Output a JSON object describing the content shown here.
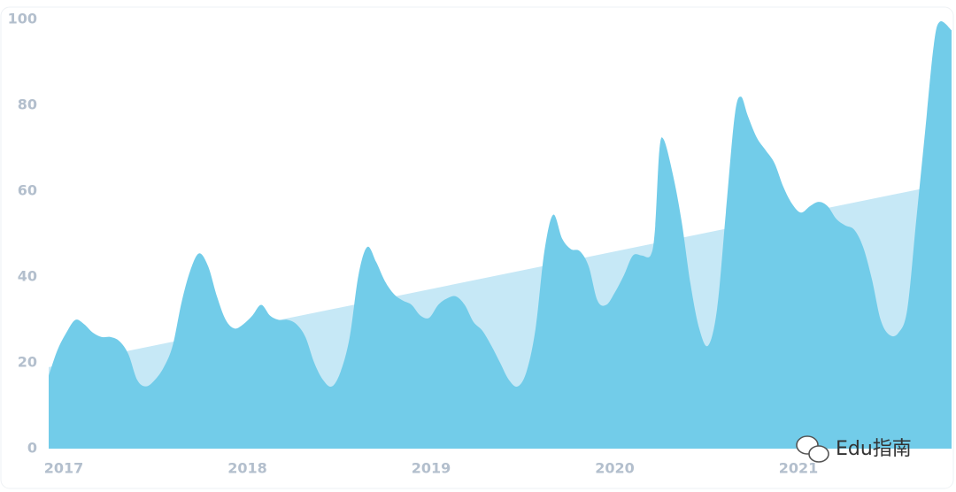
{
  "chart_data": {
    "type": "area",
    "x": [
      2016.918,
      2016.966,
      2017.014,
      2017.063,
      2017.111,
      2017.159,
      2017.207,
      2017.255,
      2017.304,
      2017.352,
      2017.4,
      2017.448,
      2017.496,
      2017.545,
      2017.593,
      2017.641,
      2017.689,
      2017.737,
      2017.786,
      2017.834,
      2017.882,
      2017.93,
      2017.978,
      2018.027,
      2018.075,
      2018.123,
      2018.171,
      2018.219,
      2018.267,
      2018.316,
      2018.364,
      2018.412,
      2018.46,
      2018.508,
      2018.557,
      2018.605,
      2018.653,
      2018.701,
      2018.749,
      2018.798,
      2018.846,
      2018.894,
      2018.942,
      2018.99,
      2019.039,
      2019.087,
      2019.135,
      2019.183,
      2019.231,
      2019.279,
      2019.328,
      2019.376,
      2019.424,
      2019.472,
      2019.52,
      2019.569,
      2019.617,
      2019.665,
      2019.713,
      2019.761,
      2019.81,
      2019.858,
      2019.906,
      2019.954,
      2020.002,
      2020.051,
      2020.099,
      2020.147,
      2020.195,
      2020.219,
      2020.243,
      2020.267,
      2020.316,
      2020.364,
      2020.412,
      2020.46,
      2020.508,
      2020.557,
      2020.605,
      2020.653,
      2020.687,
      2020.725,
      2020.773,
      2020.822,
      2020.87,
      2020.918,
      2020.966,
      2021.014,
      2021.063,
      2021.111,
      2021.159,
      2021.207,
      2021.255,
      2021.304,
      2021.352,
      2021.4,
      2021.448,
      2021.496,
      2021.545,
      2021.593,
      2021.641,
      2021.689,
      2021.737,
      2021.771,
      2021.834
    ],
    "series": [
      {
        "color": "#c6e8f6",
        "x": [
          2016.918,
          2021.665
        ],
        "values": [
          19,
          60.5
        ]
      },
      {
        "color": "#72cce9",
        "values": [
          17,
          23,
          27,
          30,
          29,
          27,
          26,
          26,
          25,
          22,
          16,
          14.5,
          16,
          19,
          24,
          34,
          41.5,
          45.5,
          42.5,
          35.5,
          30,
          28,
          29,
          31,
          33.5,
          31,
          30,
          30,
          29,
          26,
          20,
          16,
          14.5,
          18,
          26,
          40.5,
          47,
          43.5,
          39,
          36,
          34.5,
          33.5,
          31,
          30.5,
          33.5,
          35,
          35.5,
          33.5,
          29.5,
          27.5,
          24,
          20,
          16,
          14.5,
          18,
          28,
          46,
          54.5,
          49,
          46.5,
          46,
          42.5,
          34.5,
          33.5,
          36.5,
          40.5,
          45,
          45,
          45,
          51,
          69.5,
          72,
          64,
          53,
          38.5,
          28,
          24,
          32.5,
          55,
          77.5,
          82,
          77.5,
          72.5,
          69.5,
          66.5,
          61,
          57,
          55,
          56.5,
          57.5,
          56.5,
          53.5,
          52,
          51,
          47,
          39.5,
          30,
          26.5,
          27,
          32.5,
          53,
          73.5,
          94,
          99.5,
          97.5
        ]
      }
    ],
    "xlim": [
      2016.918,
      2021.834
    ],
    "xticks": [
      2017,
      2018,
      2019,
      2020,
      2021
    ],
    "ylim": [
      0,
      100
    ],
    "yticks": [
      0,
      20,
      40,
      60,
      80,
      100
    ],
    "watermark": "Edu指南"
  }
}
